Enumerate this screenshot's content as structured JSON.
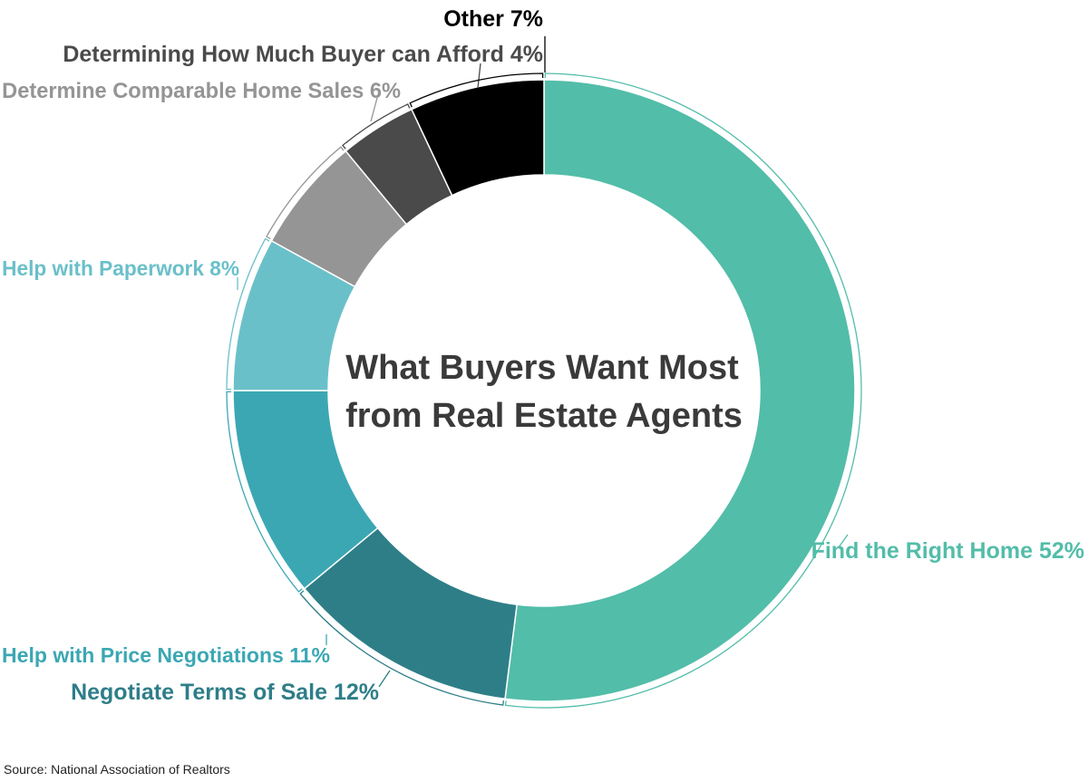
{
  "chart_data": {
    "type": "pie",
    "title_lines": [
      "What Buyers Want Most",
      "from Real Estate Agents"
    ],
    "source": "Source:  National Association of Realtors",
    "slices": [
      {
        "label": "Find the Right Home",
        "value": 52,
        "value_text": "52%",
        "color": "#52bda9",
        "label_color": "#52bda9"
      },
      {
        "label": "Negotiate Terms of Sale",
        "value": 12,
        "value_text": "12%",
        "color": "#2e7e88",
        "label_color": "#2e7e88"
      },
      {
        "label": "Help with Price Negotiations",
        "value": 11,
        "value_text": "11%",
        "color": "#3ba7b3",
        "label_color": "#3ba7b3"
      },
      {
        "label": "Help with Paperwork",
        "value": 8,
        "value_text": "8%",
        "color": "#6ac0c9",
        "label_color": "#6ac0c9"
      },
      {
        "label": "Determine Comparable Home Sales",
        "value": 6,
        "value_text": "6%",
        "color": "#959595",
        "label_color": "#959595"
      },
      {
        "label": "Determining How Much Buyer can Afford",
        "value": 4,
        "value_text": "4%",
        "color": "#4a4a4a",
        "label_color": "#4a4a4a"
      },
      {
        "label": "Other",
        "value": 7,
        "value_text": "7%",
        "color": "#000000",
        "label_color": "#000000"
      }
    ]
  }
}
